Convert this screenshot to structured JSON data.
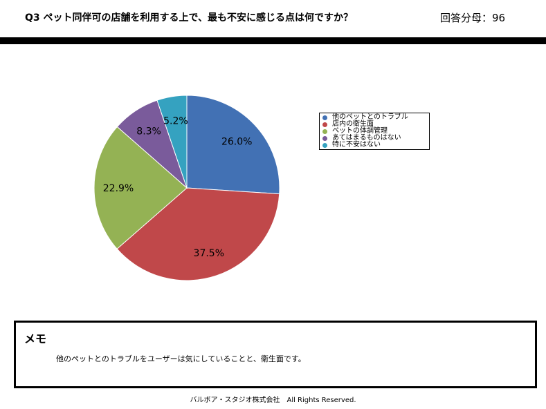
{
  "header": {
    "question": "Q3 ペット同伴可の店舗を利用する上で、最も不安に感じる点は何ですか？",
    "sample_size": "回答分母：96"
  },
  "chart_data": {
    "type": "pie",
    "categories": [
      "他のペットとのトラブル",
      "店内の衛生面",
      "ペットの体調管理",
      "あてはまるものはない",
      "特に不安はない"
    ],
    "values": [
      26.0,
      37.5,
      22.9,
      8.3,
      5.2
    ],
    "data_labels": [
      "26.0%",
      "37.5%",
      "22.9%",
      "8.3%",
      "5.2%"
    ],
    "colors": [
      "#4271b4",
      "#c0484a",
      "#94b254",
      "#7a5b9b",
      "#35a2c0"
    ],
    "legend_position": "right"
  },
  "memo": {
    "title": "メモ",
    "text": "他のペットとのトラブルをユーザーは気にしていることと、衛生面です。"
  },
  "footer": {
    "copyright": "バルボア・スタジオ株式会社　All Rights Reserved."
  }
}
